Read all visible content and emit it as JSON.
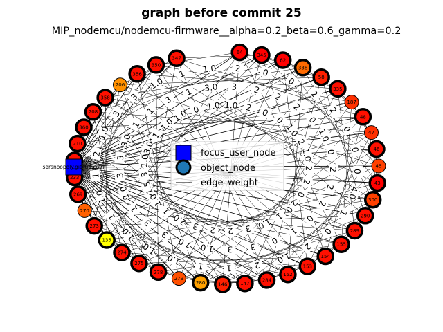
{
  "title": "graph before commit 25",
  "subtitle": "MIP_nodemcu/nodemcu-firmware__alpha=0.2_beta=0.6_gamma=0.2",
  "legend": {
    "focus_user_node": "focus_user_node",
    "object_node": "object_node",
    "edge_weight": "edge_weight"
  },
  "focus_user": {
    "label": "sersnoopoly.github.com",
    "color": "#0000ff"
  },
  "object_nodes": [
    {
      "label": "64",
      "color": "#ff0000",
      "ring": true
    },
    {
      "label": "345",
      "color": "#ff0000",
      "ring": true
    },
    {
      "label": "62",
      "color": "#ff0000",
      "ring": true
    },
    {
      "label": "338",
      "color": "#ff6a00",
      "ring": true
    },
    {
      "label": "58",
      "color": "#ff2000",
      "ring": true
    },
    {
      "label": "335",
      "color": "#ff1000",
      "ring": true
    },
    {
      "label": "187",
      "color": "#ff3000",
      "ring": false
    },
    {
      "label": "48",
      "color": "#ff1000",
      "ring": true
    },
    {
      "label": "47",
      "color": "#ff3000",
      "ring": false
    },
    {
      "label": "46",
      "color": "#ff1000",
      "ring": true
    },
    {
      "label": "45",
      "color": "#ff4000",
      "ring": false
    },
    {
      "label": "43",
      "color": "#ff0000",
      "ring": true
    },
    {
      "label": "300",
      "color": "#ff4000",
      "ring": true
    },
    {
      "label": "290",
      "color": "#ff1000",
      "ring": true
    },
    {
      "label": "289",
      "color": "#ff1000",
      "ring": true
    },
    {
      "label": "155",
      "color": "#ff1000",
      "ring": true
    },
    {
      "label": "154",
      "color": "#ff1000",
      "ring": true
    },
    {
      "label": "153",
      "color": "#ff1000",
      "ring": true
    },
    {
      "label": "152",
      "color": "#ff1000",
      "ring": true
    },
    {
      "label": "284",
      "color": "#ff1000",
      "ring": true
    },
    {
      "label": "147",
      "color": "#ff1000",
      "ring": true
    },
    {
      "label": "146",
      "color": "#ff2000",
      "ring": true
    },
    {
      "label": "280",
      "color": "#ffa000",
      "ring": true
    },
    {
      "label": "279",
      "color": "#ff5000",
      "ring": false
    },
    {
      "label": "278",
      "color": "#ff1000",
      "ring": true
    },
    {
      "label": "275",
      "color": "#ff1000",
      "ring": true
    },
    {
      "label": "274",
      "color": "#ff1000",
      "ring": true
    },
    {
      "label": "135",
      "color": "#ffff00",
      "ring": true
    },
    {
      "label": "273",
      "color": "#ff1000",
      "ring": true
    },
    {
      "label": "270",
      "color": "#ff6000",
      "ring": false
    },
    {
      "label": "269",
      "color": "#ff1000",
      "ring": true
    },
    {
      "label": "233",
      "color": "#ff1000",
      "ring": true
    },
    {
      "label": "212",
      "color": "#ff1000",
      "ring": true
    },
    {
      "label": "210",
      "color": "#ff1000",
      "ring": true
    },
    {
      "label": "360",
      "color": "#ff1000",
      "ring": true
    },
    {
      "label": "208",
      "color": "#ff1000",
      "ring": true
    },
    {
      "label": "358",
      "color": "#ff1000",
      "ring": true
    },
    {
      "label": "206",
      "color": "#ff9000",
      "ring": false
    },
    {
      "label": "356",
      "color": "#ff1000",
      "ring": true
    },
    {
      "label": "350",
      "color": "#ff1000",
      "ring": true
    },
    {
      "label": "347",
      "color": "#ff1000",
      "ring": true
    }
  ],
  "edge_labels": [
    "2",
    "2",
    "0",
    "0",
    "2",
    "0",
    "0",
    "2",
    "1.0",
    "2",
    "0",
    "2",
    "2",
    "1.0",
    "1.0",
    "0",
    "0",
    "2",
    "0",
    "2",
    "2",
    "0",
    "2",
    "0",
    "4.0",
    "2",
    "2.0",
    "1",
    "0",
    "1",
    "0",
    "1",
    "1.0",
    "2",
    "0",
    "3",
    "1.0",
    "3",
    "2",
    "2",
    "3",
    "2",
    "1",
    "1.0",
    "3",
    "1",
    "7.0",
    "2.0",
    "1.0",
    "3",
    "1",
    "1.0",
    "3",
    "1.0",
    "1.0",
    "1",
    "1.5",
    "1",
    "1.0",
    "3",
    "1.0",
    "3",
    "1.0",
    "1",
    "3",
    "3.0",
    "2",
    "3.0",
    "1",
    "1.0",
    "1",
    "1.0",
    "3",
    "1",
    "1.0",
    "3",
    "3",
    "0",
    "1.0",
    "1",
    "1.0",
    "1",
    "3.0",
    "1.0",
    "1.0",
    "3",
    "2"
  ]
}
